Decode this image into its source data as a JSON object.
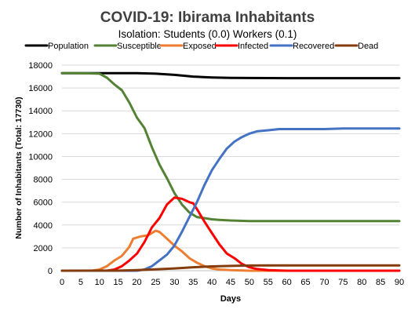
{
  "chart_data": {
    "type": "line",
    "title": "COVID-19: Ibirama Inhabitants",
    "subtitle": "Isolation: Students (0.0) Workers (0.1)",
    "xlabel": "Days",
    "ylabel": "Number of Inhabitants  (Total: 17730)",
    "xlim": [
      0,
      90
    ],
    "ylim": [
      0,
      18000
    ],
    "x_ticks": [
      0,
      5,
      10,
      15,
      20,
      25,
      30,
      35,
      40,
      45,
      50,
      55,
      60,
      65,
      70,
      75,
      80,
      85,
      90
    ],
    "y_ticks": [
      0,
      2000,
      4000,
      6000,
      8000,
      10000,
      12000,
      14000,
      16000,
      18000
    ],
    "grid": "horizontal",
    "legend_position": "top",
    "series": [
      {
        "name": "Population",
        "color": "#000000",
        "points": [
          [
            0,
            17300
          ],
          [
            10,
            17300
          ],
          [
            20,
            17300
          ],
          [
            25,
            17250
          ],
          [
            30,
            17150
          ],
          [
            35,
            17000
          ],
          [
            40,
            16920
          ],
          [
            45,
            16880
          ],
          [
            50,
            16870
          ],
          [
            60,
            16860
          ],
          [
            70,
            16860
          ],
          [
            90,
            16860
          ]
        ]
      },
      {
        "name": "Susceptible",
        "color": "#548235",
        "points": [
          [
            0,
            17300
          ],
          [
            5,
            17300
          ],
          [
            10,
            17250
          ],
          [
            12,
            16900
          ],
          [
            14,
            16300
          ],
          [
            16,
            15800
          ],
          [
            18,
            14700
          ],
          [
            20,
            13400
          ],
          [
            22,
            12500
          ],
          [
            24,
            10800
          ],
          [
            26,
            9300
          ],
          [
            28,
            8100
          ],
          [
            30,
            6800
          ],
          [
            32,
            5800
          ],
          [
            34,
            5100
          ],
          [
            36,
            4700
          ],
          [
            38,
            4600
          ],
          [
            40,
            4500
          ],
          [
            42,
            4450
          ],
          [
            45,
            4400
          ],
          [
            50,
            4350
          ],
          [
            60,
            4350
          ],
          [
            70,
            4350
          ],
          [
            90,
            4350
          ]
        ]
      },
      {
        "name": "Exposed",
        "color": "#ED7D31",
        "points": [
          [
            0,
            0
          ],
          [
            8,
            0
          ],
          [
            10,
            100
          ],
          [
            12,
            400
          ],
          [
            14,
            900
          ],
          [
            16,
            1300
          ],
          [
            18,
            2100
          ],
          [
            19,
            2800
          ],
          [
            21,
            3000
          ],
          [
            23,
            3100
          ],
          [
            25,
            3500
          ],
          [
            26,
            3400
          ],
          [
            28,
            2800
          ],
          [
            30,
            2200
          ],
          [
            32,
            1700
          ],
          [
            34,
            1100
          ],
          [
            36,
            700
          ],
          [
            38,
            400
          ],
          [
            40,
            200
          ],
          [
            42,
            100
          ],
          [
            45,
            50
          ],
          [
            50,
            0
          ],
          [
            90,
            0
          ]
        ]
      },
      {
        "name": "Infected",
        "color": "#FF0000",
        "points": [
          [
            0,
            0
          ],
          [
            12,
            0
          ],
          [
            14,
            100
          ],
          [
            16,
            400
          ],
          [
            18,
            900
          ],
          [
            20,
            1500
          ],
          [
            22,
            2500
          ],
          [
            24,
            3800
          ],
          [
            26,
            4600
          ],
          [
            28,
            5800
          ],
          [
            30,
            6400
          ],
          [
            32,
            6300
          ],
          [
            34,
            6000
          ],
          [
            35,
            5900
          ],
          [
            36,
            5400
          ],
          [
            38,
            4300
          ],
          [
            40,
            3300
          ],
          [
            42,
            2300
          ],
          [
            44,
            1500
          ],
          [
            46,
            1100
          ],
          [
            48,
            600
          ],
          [
            50,
            300
          ],
          [
            52,
            150
          ],
          [
            55,
            50
          ],
          [
            60,
            0
          ],
          [
            90,
            0
          ]
        ]
      },
      {
        "name": "Recovered",
        "color": "#4472C4",
        "points": [
          [
            0,
            0
          ],
          [
            20,
            0
          ],
          [
            22,
            100
          ],
          [
            24,
            400
          ],
          [
            26,
            900
          ],
          [
            28,
            1400
          ],
          [
            30,
            2200
          ],
          [
            32,
            3400
          ],
          [
            34,
            4700
          ],
          [
            36,
            6000
          ],
          [
            38,
            7500
          ],
          [
            40,
            8800
          ],
          [
            42,
            9800
          ],
          [
            44,
            10700
          ],
          [
            46,
            11300
          ],
          [
            48,
            11700
          ],
          [
            50,
            12000
          ],
          [
            52,
            12200
          ],
          [
            55,
            12300
          ],
          [
            58,
            12400
          ],
          [
            60,
            12400
          ],
          [
            70,
            12400
          ],
          [
            75,
            12450
          ],
          [
            90,
            12450
          ]
        ]
      },
      {
        "name": "Dead",
        "color": "#843C0C",
        "points": [
          [
            0,
            0
          ],
          [
            15,
            10
          ],
          [
            20,
            50
          ],
          [
            25,
            120
          ],
          [
            30,
            200
          ],
          [
            35,
            300
          ],
          [
            40,
            380
          ],
          [
            45,
            420
          ],
          [
            50,
            450
          ],
          [
            55,
            460
          ],
          [
            60,
            460
          ],
          [
            90,
            460
          ]
        ]
      }
    ]
  }
}
